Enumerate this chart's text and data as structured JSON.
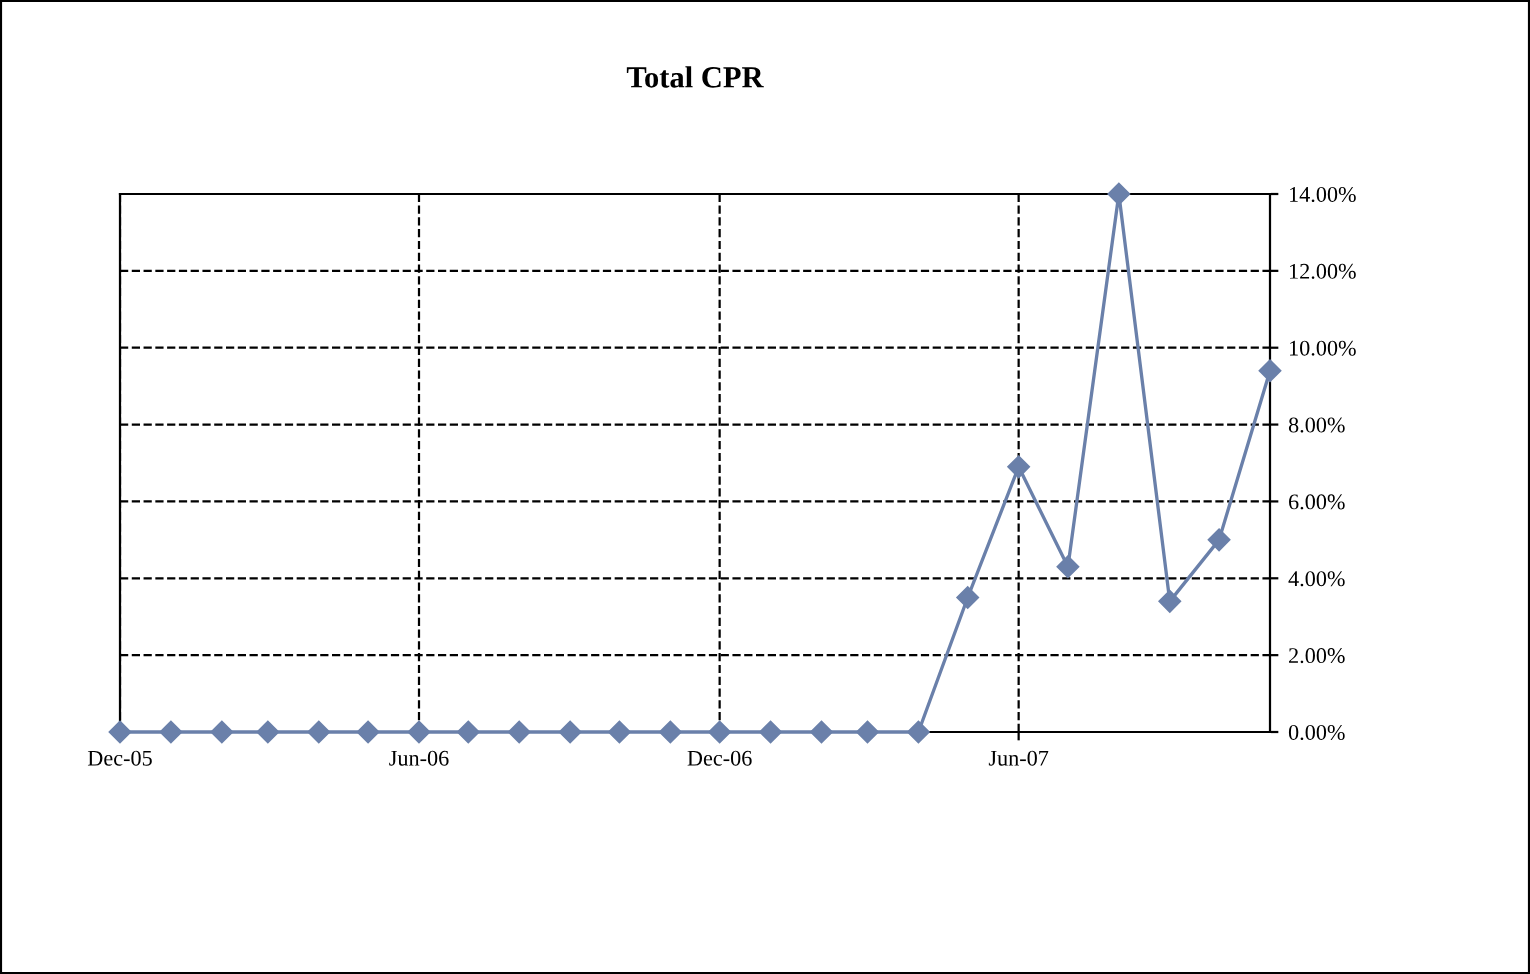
{
  "chart_data": {
    "type": "line",
    "title": "Total CPR",
    "x": [
      "2005-12",
      "2006-01",
      "2006-02",
      "2006-03",
      "2006-04",
      "2006-05",
      "2006-06",
      "2006-07",
      "2006-08",
      "2006-09",
      "2006-10",
      "2006-11",
      "2006-12",
      "2007-01",
      "2007-02",
      "2007-03",
      "2007-04",
      "2007-05",
      "2007-06",
      "2007-07",
      "2007-08",
      "2007-09",
      "2007-10",
      "2007-11"
    ],
    "series": [
      {
        "color": "#6a80aa",
        "values": [
          0,
          0,
          0,
          0,
          0,
          0,
          0,
          0,
          0,
          0,
          0,
          0,
          0,
          0,
          0,
          0,
          0,
          3.5,
          6.9,
          4.3,
          14.0,
          3.4,
          5.0,
          9.4
        ]
      }
    ],
    "xlim": [
      "2005-12",
      "2007-11"
    ],
    "xticks": [
      {
        "value": "2005-12",
        "label": "Dec-05"
      },
      {
        "value": "2006-06",
        "label": "Jun-06"
      },
      {
        "value": "2006-12",
        "label": "Dec-06"
      },
      {
        "value": "2007-06",
        "label": "Jun-07"
      }
    ],
    "ylim": [
      0,
      14
    ],
    "yticks": [
      {
        "value": 0,
        "label": "0.00%"
      },
      {
        "value": 2,
        "label": "2.00%"
      },
      {
        "value": 4,
        "label": "4.00%"
      },
      {
        "value": 6,
        "label": "6.00%"
      },
      {
        "value": 8,
        "label": "8.00%"
      },
      {
        "value": 10,
        "label": "10.00%"
      },
      {
        "value": 12,
        "label": "12.00%"
      },
      {
        "value": 14,
        "label": "14.00%"
      }
    ],
    "grid": true,
    "marker": "diamond",
    "line_style": "solid"
  }
}
